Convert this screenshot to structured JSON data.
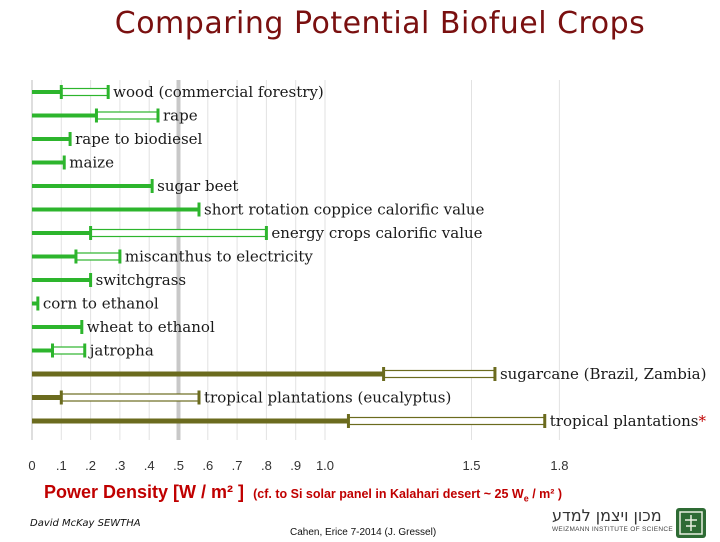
{
  "title": "Comparing Potential Biofuel Crops",
  "xlabel": "Power Density [W / m² ]",
  "xlabel_note": "(cf. to Si solar panel in Kalahari desert ~ 25 W",
  "xlabel_note_sub": "e",
  "xlabel_note_end": " / m² )",
  "footer": {
    "left": "David McKay SEWTHA",
    "center": "Cahen, Erice 7-2014 (J. Gressel)"
  },
  "logo": {
    "hebrew": "מכון ויצמן למדע",
    "english": "WEIZMANN INSTITUTE OF SCIENCE",
    "seal_icon": "weizmann-seal-icon"
  },
  "colors": {
    "temperate_crop": "#2db52d",
    "tropical_crop": "#6b6b1e",
    "title": "#7a1010",
    "axis_label": "#c00000"
  },
  "chart_data": {
    "type": "bar",
    "orientation": "horizontal range bars",
    "xlim": [
      0,
      1.8
    ],
    "xticks": [
      {
        "value": 0,
        "label": "0"
      },
      {
        "value": 0.1,
        "label": ".1"
      },
      {
        "value": 0.2,
        "label": ".2"
      },
      {
        "value": 0.3,
        "label": ".3"
      },
      {
        "value": 0.4,
        "label": ".4"
      },
      {
        "value": 0.5,
        "label": ".5"
      },
      {
        "value": 0.6,
        "label": ".6"
      },
      {
        "value": 0.7,
        "label": ".7"
      },
      {
        "value": 0.8,
        "label": ".8"
      },
      {
        "value": 0.9,
        "label": ".9"
      },
      {
        "value": 1.0,
        "label": "1.0"
      },
      {
        "value": 1.5,
        "label": "1.5"
      },
      {
        "value": 1.8,
        "label": "1.8"
      }
    ],
    "reference_line": 0.5,
    "grid": true,
    "rows": [
      {
        "label": "wood (commercial forestry)",
        "low": 0.1,
        "high": 0.26,
        "group": "temperate"
      },
      {
        "label": "rape",
        "low": 0.22,
        "high": 0.43,
        "group": "temperate"
      },
      {
        "label": "rape to biodiesel",
        "low": 0.13,
        "high": 0.13,
        "group": "temperate"
      },
      {
        "label": "maize",
        "low": 0.11,
        "high": 0.11,
        "group": "temperate"
      },
      {
        "label": "sugar beet",
        "low": 0.41,
        "high": 0.41,
        "group": "temperate"
      },
      {
        "label": "short rotation coppice calorific value",
        "low": 0.57,
        "high": 0.57,
        "group": "temperate"
      },
      {
        "label": "energy crops calorific value",
        "low": 0.2,
        "high": 0.8,
        "group": "temperate"
      },
      {
        "label": "miscanthus to electricity",
        "low": 0.15,
        "high": 0.3,
        "group": "temperate"
      },
      {
        "label": "switchgrass",
        "low": 0.2,
        "high": 0.2,
        "group": "temperate"
      },
      {
        "label": "corn to ethanol",
        "low": 0.02,
        "high": 0.02,
        "group": "temperate"
      },
      {
        "label": "wheat to ethanol",
        "low": 0.17,
        "high": 0.17,
        "group": "temperate"
      },
      {
        "label": "jatropha",
        "low": 0.07,
        "high": 0.18,
        "group": "temperate"
      },
      {
        "label": "sugarcane (Brazil, Zambia)",
        "low": 1.2,
        "high": 1.58,
        "group": "tropical"
      },
      {
        "label": "tropical plantations (eucalyptus)",
        "low": 0.1,
        "high": 0.57,
        "group": "tropical"
      },
      {
        "label": "tropical plantations*",
        "low": 1.08,
        "high": 1.75,
        "group": "tropical",
        "label_suffix": "*"
      }
    ]
  }
}
